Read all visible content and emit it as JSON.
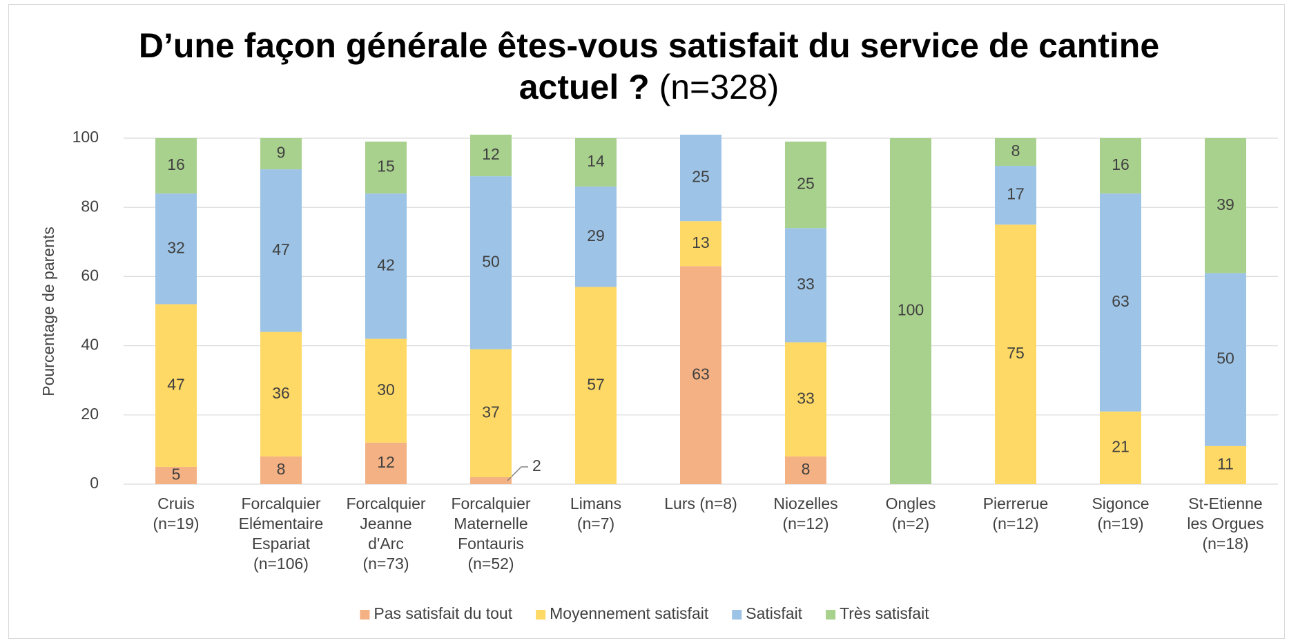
{
  "chart_data": {
    "type": "stacked_bar",
    "title": "D’une façon générale êtes-vous satisfait du service de cantine actuel ?",
    "title_note": "(n=328)",
    "y_label": "Pourcentage de parents",
    "categories": [
      "Cruis\n(n=19)",
      "Forcalquier\nElémentaire\nEspariat\n(n=106)",
      "Forcalquier\nJeanne\nd'Arc\n(n=73)",
      "Forcalquier\nMaternelle\nFontauris\n(n=52)",
      "Limans\n(n=7)",
      "Lurs (n=8)",
      "Niozelles\n(n=12)",
      "Ongles\n(n=2)",
      "Pierrerue\n(n=12)",
      "Sigonce\n(n=19)",
      "St-Etienne\nles Orgues\n(n=18)"
    ],
    "series": [
      {
        "name": "Pas satisfait du tout",
        "color": "#f4b183",
        "values": [
          5,
          8,
          12,
          2,
          null,
          63,
          8,
          null,
          null,
          null,
          null
        ]
      },
      {
        "name": "Moyennement satisfait",
        "color": "#ffd966",
        "values": [
          47,
          36,
          30,
          37,
          57,
          13,
          33,
          null,
          75,
          21,
          11
        ]
      },
      {
        "name": "Satisfait",
        "color": "#9dc3e6",
        "values": [
          32,
          47,
          42,
          50,
          29,
          25,
          33,
          null,
          17,
          63,
          50
        ]
      },
      {
        "name": "Très satisfait",
        "color": "#a9d18e",
        "values": [
          16,
          9,
          15,
          12,
          14,
          null,
          25,
          100,
          8,
          16,
          39
        ]
      }
    ],
    "ylim": [
      0,
      100
    ],
    "yticks": [
      0,
      20,
      40,
      60,
      80,
      100
    ],
    "grid": true,
    "legend": "bottom"
  }
}
